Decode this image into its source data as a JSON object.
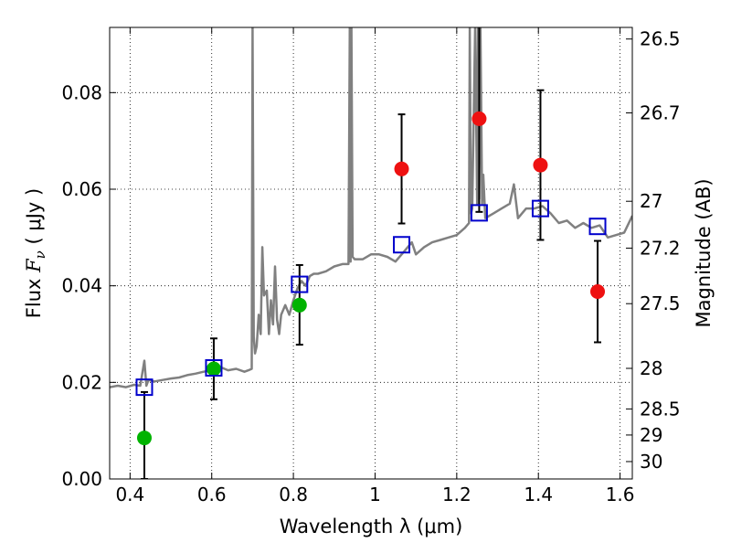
{
  "chart_data": {
    "type": "scatter",
    "xlabel": "Wavelength  λ (μm)",
    "ylabel": "Flux  F_ν  ( μJy )",
    "y2label": "Magnitude (AB)",
    "xlim": [
      0.35,
      1.63
    ],
    "ylim": [
      0.0,
      0.0935
    ],
    "x_ticks": [
      {
        "value": 0.4,
        "label": "0.4"
      },
      {
        "value": 0.6,
        "label": "0.6"
      },
      {
        "value": 0.8,
        "label": "0.8"
      },
      {
        "value": 1.0,
        "label": "1"
      },
      {
        "value": 1.2,
        "label": "1.2"
      },
      {
        "value": 1.4,
        "label": "1.4"
      },
      {
        "value": 1.6,
        "label": "1.6"
      }
    ],
    "y_ticks": [
      {
        "value": 0.0,
        "label": "0.00"
      },
      {
        "value": 0.02,
        "label": "0.02"
      },
      {
        "value": 0.04,
        "label": "0.04"
      },
      {
        "value": 0.06,
        "label": "0.06"
      },
      {
        "value": 0.08,
        "label": "0.08"
      }
    ],
    "y2_ticks": [
      {
        "flux": 0.0911,
        "label": "26.5"
      },
      {
        "flux": 0.0758,
        "label": "26.7"
      },
      {
        "flux": 0.0575,
        "label": "27"
      },
      {
        "flux": 0.0478,
        "label": "27.2"
      },
      {
        "flux": 0.0363,
        "label": "27.5"
      },
      {
        "flux": 0.0229,
        "label": "28"
      },
      {
        "flux": 0.0145,
        "label": "28.5"
      },
      {
        "flux": 0.0091,
        "label": "29"
      },
      {
        "flux": 0.0036,
        "label": "30"
      }
    ],
    "grid": true,
    "series": [
      {
        "marker": "circle-filled",
        "color": "#00b300",
        "points": [
          {
            "x": 0.435,
            "y": 0.0085,
            "yerr_lo": 0.0085,
            "yerr_hi": 0.0095
          },
          {
            "x": 0.605,
            "y": 0.0228,
            "yerr_lo": 0.0063,
            "yerr_hi": 0.0063
          },
          {
            "x": 0.815,
            "y": 0.036,
            "yerr_lo": 0.0082,
            "yerr_hi": 0.0083
          }
        ]
      },
      {
        "marker": "circle-filled",
        "color": "#ee1111",
        "points": [
          {
            "x": 1.065,
            "y": 0.0642,
            "yerr_lo": 0.0113,
            "yerr_hi": 0.0113
          },
          {
            "x": 1.255,
            "y": 0.0746,
            "yerr_lo": 0.0193,
            "yerr_hi": 0.0193
          },
          {
            "x": 1.405,
            "y": 0.065,
            "yerr_lo": 0.0155,
            "yerr_hi": 0.0155
          },
          {
            "x": 1.545,
            "y": 0.0388,
            "yerr_lo": 0.0105,
            "yerr_hi": 0.0105
          }
        ]
      },
      {
        "marker": "square-open",
        "color": "#0000cc",
        "points": [
          {
            "x": 0.435,
            "y": 0.019
          },
          {
            "x": 0.605,
            "y": 0.023
          },
          {
            "x": 0.815,
            "y": 0.0403
          },
          {
            "x": 1.065,
            "y": 0.0485
          },
          {
            "x": 1.255,
            "y": 0.0551
          },
          {
            "x": 1.405,
            "y": 0.056
          },
          {
            "x": 1.545,
            "y": 0.0523
          }
        ]
      },
      {
        "type": "line",
        "color": "#808080",
        "x": [
          0.35,
          0.37,
          0.39,
          0.41,
          0.425,
          0.435,
          0.44,
          0.445,
          0.46,
          0.48,
          0.5,
          0.52,
          0.54,
          0.56,
          0.58,
          0.6,
          0.62,
          0.64,
          0.66,
          0.68,
          0.69,
          0.698,
          0.7,
          0.703,
          0.706,
          0.71,
          0.715,
          0.72,
          0.724,
          0.728,
          0.735,
          0.74,
          0.745,
          0.75,
          0.755,
          0.76,
          0.765,
          0.77,
          0.78,
          0.79,
          0.8,
          0.81,
          0.82,
          0.83,
          0.84,
          0.85,
          0.86,
          0.88,
          0.9,
          0.92,
          0.935,
          0.938,
          0.94,
          0.942,
          0.945,
          0.95,
          0.97,
          0.99,
          1.01,
          1.03,
          1.05,
          1.07,
          1.09,
          1.1,
          1.12,
          1.14,
          1.16,
          1.18,
          1.2,
          1.22,
          1.23,
          1.232,
          1.235,
          1.238,
          1.245,
          1.25,
          1.252,
          1.255,
          1.258,
          1.262,
          1.265,
          1.27,
          1.29,
          1.31,
          1.33,
          1.34,
          1.35,
          1.37,
          1.39,
          1.41,
          1.43,
          1.45,
          1.47,
          1.49,
          1.51,
          1.53,
          1.55,
          1.57,
          1.59,
          1.61,
          1.63
        ],
        "y": [
          0.019,
          0.0193,
          0.019,
          0.0195,
          0.0193,
          0.0245,
          0.0193,
          0.0205,
          0.0202,
          0.0205,
          0.0208,
          0.021,
          0.0215,
          0.0218,
          0.0222,
          0.0225,
          0.0232,
          0.0225,
          0.0228,
          0.0222,
          0.0225,
          0.0228,
          0.0935,
          0.0295,
          0.026,
          0.0275,
          0.034,
          0.03,
          0.048,
          0.038,
          0.039,
          0.03,
          0.037,
          0.032,
          0.044,
          0.033,
          0.03,
          0.034,
          0.036,
          0.034,
          0.037,
          0.0395,
          0.041,
          0.04,
          0.042,
          0.0425,
          0.0425,
          0.043,
          0.044,
          0.0445,
          0.0445,
          0.0935,
          0.045,
          0.0935,
          0.046,
          0.0455,
          0.0455,
          0.0465,
          0.0465,
          0.046,
          0.045,
          0.047,
          0.049,
          0.0465,
          0.048,
          0.049,
          0.0495,
          0.05,
          0.0505,
          0.052,
          0.053,
          0.0935,
          0.055,
          0.056,
          0.0935,
          0.057,
          0.0935,
          0.058,
          0.0935,
          0.057,
          0.063,
          0.054,
          0.055,
          0.056,
          0.057,
          0.061,
          0.054,
          0.056,
          0.056,
          0.0565,
          0.055,
          0.053,
          0.0535,
          0.052,
          0.053,
          0.052,
          0.0525,
          0.05,
          0.0505,
          0.051,
          0.0545
        ]
      }
    ]
  }
}
